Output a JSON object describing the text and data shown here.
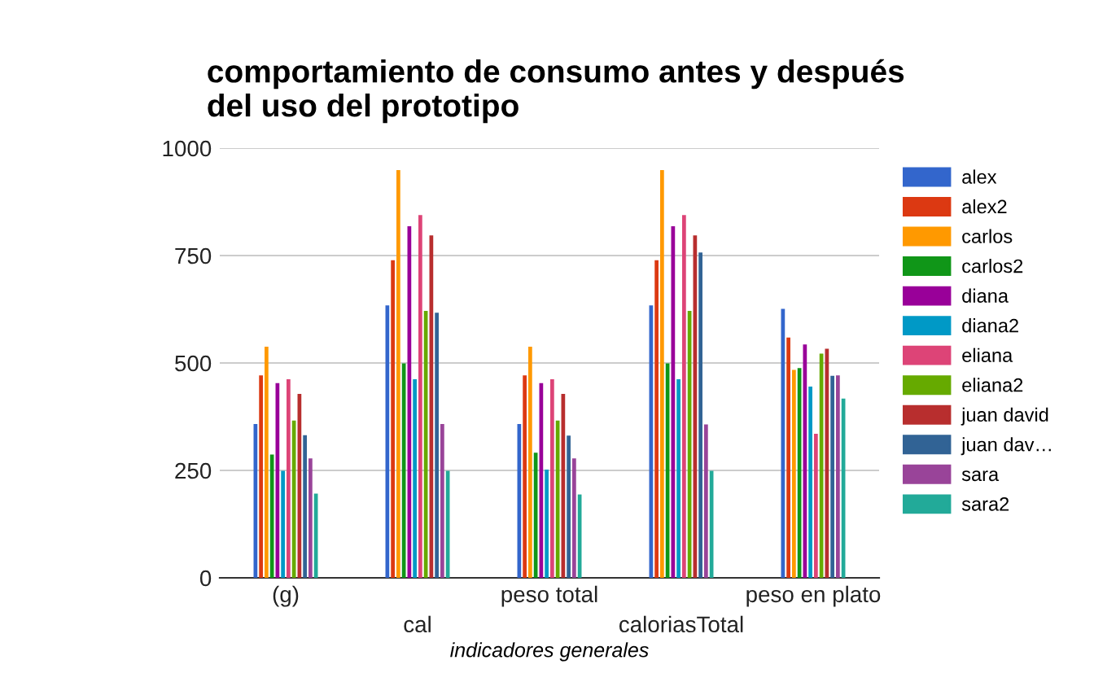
{
  "chart_data": {
    "type": "bar",
    "title": "comportamiento de consumo antes y después\ndel uso del prototipo",
    "xlabel": "indicadores generales",
    "categories": [
      "(g)",
      "cal",
      "peso total",
      "caloriasTotal",
      "peso en plato"
    ],
    "ylim": [
      0,
      1000
    ],
    "yticks": [
      0,
      250,
      500,
      750,
      1000
    ],
    "grid": "y",
    "legend": "right",
    "series": [
      {
        "name": "alex",
        "color": "#3366cc",
        "values": [
          358,
          634,
          358,
          634,
          626
        ]
      },
      {
        "name": "alex2",
        "color": "#dc3912",
        "values": [
          471,
          739,
          471,
          739,
          559
        ]
      },
      {
        "name": "carlos",
        "color": "#ff9900",
        "values": [
          538,
          949,
          538,
          949,
          484
        ]
      },
      {
        "name": "carlos2",
        "color": "#109618",
        "values": [
          287,
          499,
          291,
          499,
          488
        ]
      },
      {
        "name": "diana",
        "color": "#990099",
        "values": [
          453,
          818,
          453,
          818,
          543
        ]
      },
      {
        "name": "diana2",
        "color": "#0099c6",
        "values": [
          249,
          462,
          252,
          462,
          445
        ]
      },
      {
        "name": "eliana",
        "color": "#dd4477",
        "values": [
          462,
          844,
          462,
          844,
          335
        ]
      },
      {
        "name": "eliana2",
        "color": "#66aa00",
        "values": [
          366,
          621,
          366,
          621,
          522
        ]
      },
      {
        "name": "juan david",
        "color": "#b82e2e",
        "values": [
          428,
          797,
          428,
          797,
          533
        ]
      },
      {
        "name": "juan dav…",
        "color": "#316395",
        "values": [
          332,
          617,
          331,
          757,
          470
        ]
      },
      {
        "name": "sara",
        "color": "#994499",
        "values": [
          278,
          358,
          278,
          357,
          471
        ]
      },
      {
        "name": "sara2",
        "color": "#22aa99",
        "values": [
          196,
          249,
          194,
          249,
          417
        ]
      }
    ]
  }
}
